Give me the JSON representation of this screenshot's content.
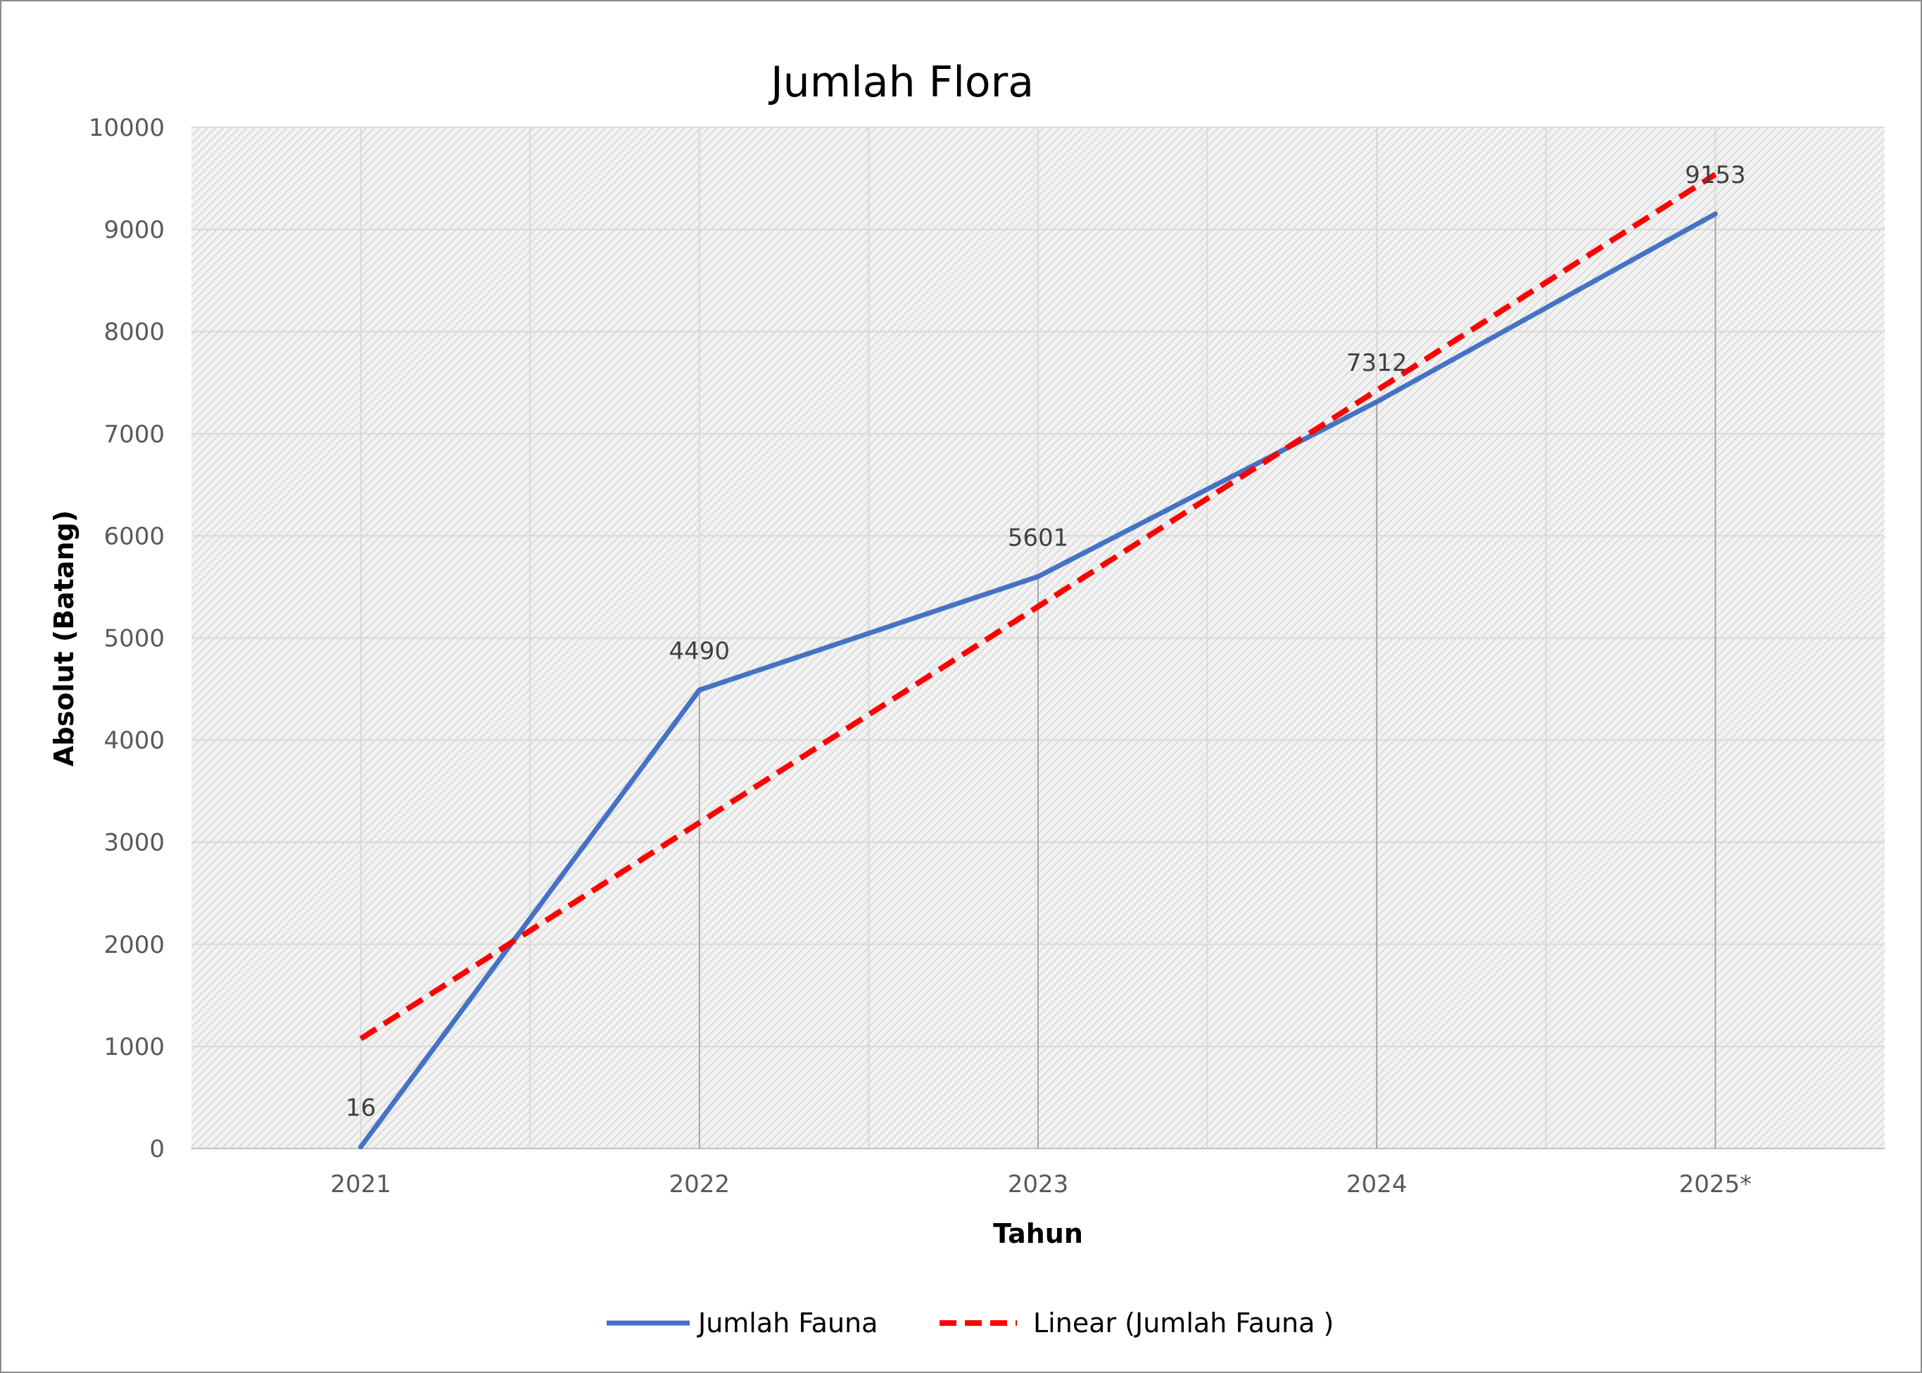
{
  "chart_data": {
    "type": "line",
    "title": "Jumlah Flora",
    "xlabel": "Tahun",
    "ylabel": "Absolut (Batang)",
    "categories": [
      "2021",
      "2022",
      "2023",
      "2024",
      "2025*"
    ],
    "series": [
      {
        "name": "Jumlah Fauna",
        "values": [
          16,
          4490,
          5601,
          7312,
          9153
        ],
        "color": "#4472C4",
        "data_labels": [
          "16",
          "4490",
          "5601",
          "7312",
          "9153"
        ]
      }
    ],
    "trendline": {
      "name": "Linear (Jumlah Fauna )",
      "kind": "linear",
      "color": "#FF0000",
      "style": "dashed",
      "start_value": 1075,
      "end_value": 9540
    },
    "y_ticks": [
      "0",
      "1000",
      "2000",
      "3000",
      "4000",
      "5000",
      "6000",
      "7000",
      "8000",
      "9000",
      "10000"
    ],
    "ylim": [
      0,
      10000
    ],
    "grid": true,
    "drop_lines": true,
    "legend_position": "bottom",
    "plot_background": "hatched light gray"
  }
}
